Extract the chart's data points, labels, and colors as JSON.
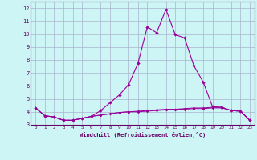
{
  "xlabel": "Windchill (Refroidissement éolien,°C)",
  "x": [
    0,
    1,
    2,
    3,
    4,
    5,
    6,
    7,
    8,
    9,
    10,
    11,
    12,
    13,
    14,
    15,
    16,
    17,
    18,
    19,
    20,
    21,
    22,
    23
  ],
  "line_main": [
    4.3,
    3.7,
    3.6,
    3.35,
    3.35,
    3.5,
    3.65,
    4.1,
    4.7,
    5.3,
    6.1,
    7.75,
    10.55,
    10.1,
    11.9,
    9.95,
    9.7,
    7.55,
    6.3,
    4.4,
    4.35,
    4.1,
    4.05,
    3.35
  ],
  "line_flat1": [
    4.3,
    3.7,
    3.6,
    3.35,
    3.35,
    3.5,
    3.65,
    3.75,
    3.85,
    3.95,
    4.0,
    4.05,
    4.1,
    4.15,
    4.2,
    4.2,
    4.25,
    4.3,
    4.3,
    4.35,
    4.35,
    4.1,
    4.05,
    3.35
  ],
  "line_flat2": [
    4.3,
    3.7,
    3.6,
    3.35,
    3.35,
    3.5,
    3.65,
    3.75,
    3.85,
    3.95,
    4.0,
    4.0,
    4.05,
    4.1,
    4.15,
    4.2,
    4.2,
    4.25,
    4.25,
    4.3,
    4.3,
    4.1,
    4.05,
    3.35
  ],
  "line_color": "#990099",
  "bg_color": "#cef5f5",
  "grid_color": "#aab4cc",
  "ylim": [
    3.0,
    12.5
  ],
  "yticks": [
    3,
    4,
    5,
    6,
    7,
    8,
    9,
    10,
    11,
    12
  ],
  "xticks": [
    0,
    1,
    2,
    3,
    4,
    5,
    6,
    7,
    8,
    9,
    10,
    11,
    12,
    13,
    14,
    15,
    16,
    17,
    18,
    19,
    20,
    21,
    22,
    23
  ],
  "tick_color": "#660066",
  "spine_color": "#660066",
  "label_color": "#660066"
}
